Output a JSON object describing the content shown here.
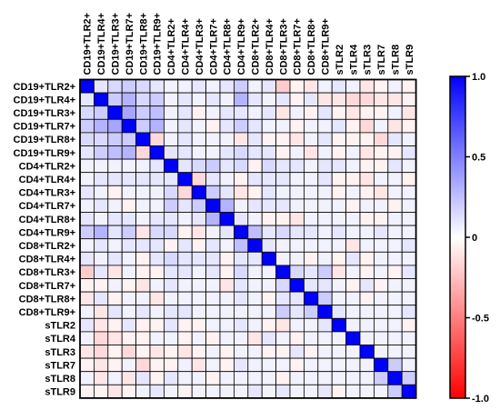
{
  "chart_data": {
    "type": "heatmap",
    "title": "",
    "xlabel": "",
    "ylabel": "",
    "rows": [
      "CD19+TLR2+",
      "CD19+TLR4+",
      "CD19+TLR3+",
      "CD19+TLR7+",
      "CD19+TLR8+",
      "CD19+TLR9+",
      "CD4+TLR2+",
      "CD4+TLR4+",
      "CD4+TLR3+",
      "CD4+TLR7+",
      "CD4+TLR8+",
      "CD4+TLR9+",
      "CD8+TLR2+",
      "CD8+TLR4+",
      "CD8+TLR3+",
      "CD8+TLR7+",
      "CD8+TLR8+",
      "CD8+TLR9+",
      "sTLR2",
      "sTLR4",
      "sTLR3",
      "sTLR7",
      "sTLR8",
      "sTLR9"
    ],
    "columns": [
      "CD19+TLR2+",
      "CD19+TLR4+",
      "CD19+TLR3+",
      "CD19+TLR7+",
      "CD19+TLR8+",
      "CD19+TLR9+",
      "CD4+TLR2+",
      "CD4+TLR4+",
      "CD4+TLR3+",
      "CD4+TLR7+",
      "CD4+TLR8+",
      "CD4+TLR9+",
      "CD8+TLR2+",
      "CD8+TLR4+",
      "CD8+TLR3+",
      "CD8+TLR7+",
      "CD8+TLR8+",
      "CD8+TLR9+",
      "sTLR2",
      "sTLR4",
      "sTLR3",
      "sTLR7",
      "sTLR8",
      "sTLR9"
    ],
    "values": [
      [
        1.0,
        0.1,
        0.15,
        0.2,
        0.15,
        0.1,
        0.05,
        0.05,
        0.1,
        0.05,
        0.1,
        0.2,
        0.05,
        0.1,
        -0.2,
        -0.05,
        -0.1,
        0.05,
        0.1,
        0.05,
        -0.1,
        -0.05,
        0.05,
        -0.05
      ],
      [
        0.1,
        1.0,
        0.2,
        0.3,
        0.15,
        0.2,
        0.05,
        0.1,
        0.05,
        0.1,
        0.05,
        0.3,
        0.1,
        0.05,
        0.1,
        -0.05,
        0.1,
        -0.1,
        -0.1,
        -0.15,
        -0.15,
        -0.1,
        -0.1,
        -0.05
      ],
      [
        0.15,
        0.2,
        1.0,
        0.35,
        0.2,
        0.25,
        0.05,
        0.1,
        -0.05,
        0.05,
        0.1,
        0.1,
        0.05,
        0.1,
        -0.1,
        0.05,
        -0.05,
        0.1,
        -0.05,
        -0.1,
        -0.05,
        -0.05,
        0.05,
        -0.1
      ],
      [
        0.2,
        0.3,
        0.35,
        1.0,
        0.2,
        0.3,
        0.05,
        0.1,
        0.05,
        -0.05,
        0.1,
        0.2,
        0.1,
        0.05,
        0.05,
        -0.05,
        0.05,
        0.05,
        0.1,
        -0.05,
        -0.15,
        0.05,
        -0.1,
        -0.05
      ],
      [
        0.15,
        0.15,
        0.2,
        0.2,
        1.0,
        -0.15,
        0.05,
        0.1,
        0.05,
        0.05,
        0.05,
        -0.1,
        0.1,
        -0.05,
        -0.05,
        -0.1,
        0.05,
        0.1,
        -0.05,
        -0.05,
        -0.05,
        -0.15,
        0.1,
        0.05
      ],
      [
        0.1,
        0.2,
        0.25,
        0.3,
        -0.15,
        1.0,
        0.1,
        0.1,
        0.05,
        0.05,
        0.1,
        0.15,
        0.1,
        0.1,
        -0.05,
        0.05,
        -0.1,
        0.05,
        -0.05,
        0.05,
        -0.1,
        -0.05,
        -0.05,
        0.1
      ],
      [
        0.05,
        0.05,
        0.05,
        0.05,
        0.05,
        0.1,
        1.0,
        0.1,
        0.15,
        0.2,
        0.1,
        0.15,
        -0.05,
        0.15,
        0.1,
        0.1,
        0.05,
        0.1,
        0.1,
        0.05,
        -0.05,
        -0.05,
        0.1,
        0.05
      ],
      [
        0.05,
        0.1,
        0.1,
        0.1,
        0.1,
        0.1,
        0.1,
        1.0,
        -0.15,
        0.1,
        0.05,
        -0.05,
        0.1,
        0.1,
        0.1,
        0.05,
        0.05,
        0.1,
        -0.05,
        -0.05,
        -0.1,
        0.05,
        0.05,
        -0.05
      ],
      [
        0.1,
        0.05,
        -0.05,
        0.05,
        0.05,
        0.05,
        0.15,
        -0.15,
        1.0,
        0.2,
        0.1,
        -0.1,
        -0.05,
        0.1,
        0.05,
        0.05,
        0.05,
        0.05,
        -0.05,
        0.05,
        -0.05,
        -0.1,
        0.05,
        0.05
      ],
      [
        0.05,
        0.1,
        0.05,
        -0.05,
        0.05,
        0.05,
        0.2,
        0.1,
        0.2,
        1.0,
        0.3,
        0.05,
        0.1,
        0.1,
        0.1,
        0.05,
        0.05,
        0.05,
        0.05,
        -0.05,
        0.05,
        0.05,
        -0.05,
        0.05
      ],
      [
        0.1,
        0.05,
        0.1,
        0.1,
        0.05,
        0.1,
        0.1,
        0.05,
        0.1,
        0.3,
        1.0,
        0.1,
        0.05,
        -0.05,
        -0.05,
        -0.1,
        0.05,
        0.05,
        0.05,
        0.05,
        -0.05,
        -0.05,
        0.05,
        0.05
      ],
      [
        0.2,
        0.3,
        0.1,
        0.2,
        -0.1,
        0.15,
        0.15,
        -0.05,
        -0.1,
        0.05,
        0.1,
        1.0,
        0.25,
        0.1,
        0.15,
        0.1,
        0.1,
        0.05,
        0.1,
        0.05,
        0.05,
        0.1,
        0.05,
        0.05
      ],
      [
        0.05,
        0.1,
        0.05,
        0.1,
        0.1,
        0.1,
        -0.05,
        0.1,
        -0.05,
        0.1,
        0.05,
        0.25,
        1.0,
        0.1,
        0.05,
        0.05,
        0.05,
        0.05,
        0.05,
        -0.1,
        0.05,
        0.05,
        0.05,
        0.1
      ],
      [
        0.1,
        0.05,
        0.1,
        0.05,
        -0.05,
        0.1,
        0.15,
        0.1,
        0.1,
        0.1,
        -0.05,
        0.1,
        0.1,
        1.0,
        0.05,
        0.05,
        -0.05,
        0.05,
        -0.05,
        0.1,
        -0.05,
        0.05,
        0.05,
        0.05
      ],
      [
        -0.2,
        0.1,
        -0.1,
        0.05,
        -0.05,
        -0.05,
        0.1,
        0.1,
        0.05,
        0.1,
        -0.05,
        0.15,
        0.05,
        0.05,
        1.0,
        0.15,
        0.1,
        0.2,
        -0.1,
        0.05,
        -0.05,
        0.05,
        -0.05,
        0.1
      ],
      [
        -0.05,
        -0.05,
        0.05,
        -0.05,
        -0.1,
        0.05,
        0.1,
        0.05,
        0.05,
        0.05,
        -0.1,
        0.1,
        0.05,
        0.05,
        0.15,
        1.0,
        0.1,
        0.1,
        0.05,
        -0.05,
        0.1,
        -0.05,
        0.05,
        0.05
      ],
      [
        -0.1,
        0.1,
        -0.05,
        0.05,
        0.05,
        -0.1,
        0.05,
        0.05,
        0.05,
        0.05,
        0.05,
        0.1,
        0.05,
        -0.05,
        0.1,
        0.1,
        1.0,
        0.2,
        0.05,
        0.05,
        -0.05,
        0.05,
        0.05,
        0.05
      ],
      [
        0.05,
        -0.1,
        0.1,
        0.05,
        0.1,
        0.05,
        0.1,
        0.1,
        0.05,
        0.05,
        0.05,
        0.05,
        0.05,
        0.05,
        0.2,
        0.1,
        0.2,
        1.0,
        0.1,
        0.05,
        0.05,
        0.05,
        0.05,
        0.1
      ],
      [
        0.1,
        -0.1,
        -0.05,
        0.1,
        -0.05,
        -0.05,
        0.1,
        -0.05,
        -0.05,
        0.05,
        0.05,
        0.1,
        0.05,
        -0.05,
        -0.1,
        0.05,
        0.05,
        0.1,
        1.0,
        0.05,
        0.05,
        0.05,
        0.05,
        -0.05
      ],
      [
        0.05,
        -0.15,
        -0.1,
        -0.05,
        -0.05,
        0.05,
        0.05,
        -0.05,
        0.05,
        -0.05,
        0.05,
        0.05,
        -0.1,
        0.1,
        0.05,
        -0.05,
        0.05,
        0.05,
        0.05,
        1.0,
        0.05,
        0.05,
        0.05,
        0.05
      ],
      [
        -0.1,
        -0.15,
        -0.05,
        -0.15,
        -0.05,
        -0.1,
        -0.05,
        -0.1,
        -0.05,
        0.05,
        -0.05,
        0.05,
        0.05,
        -0.05,
        -0.05,
        0.1,
        -0.05,
        0.05,
        0.05,
        0.05,
        1.0,
        0.05,
        0.05,
        0.05
      ],
      [
        -0.05,
        -0.1,
        -0.05,
        0.05,
        -0.15,
        -0.05,
        -0.05,
        0.05,
        -0.1,
        0.05,
        -0.05,
        0.1,
        0.05,
        0.05,
        0.05,
        -0.05,
        0.05,
        0.05,
        0.05,
        0.05,
        0.05,
        1.0,
        0.2,
        0.05
      ],
      [
        0.05,
        -0.1,
        0.05,
        -0.1,
        0.1,
        -0.05,
        0.1,
        0.05,
        0.05,
        -0.05,
        0.05,
        0.05,
        0.05,
        0.05,
        -0.05,
        0.05,
        0.05,
        0.05,
        0.05,
        0.05,
        0.05,
        0.2,
        1.0,
        0.2
      ],
      [
        -0.05,
        -0.05,
        -0.1,
        -0.05,
        0.05,
        0.1,
        0.05,
        -0.05,
        0.05,
        0.05,
        0.05,
        0.05,
        0.1,
        0.05,
        0.1,
        0.05,
        0.05,
        0.1,
        -0.05,
        0.05,
        0.05,
        0.05,
        0.2,
        1.0
      ]
    ],
    "value_range": [
      -1.0,
      1.0
    ],
    "colorbar": {
      "ticks": [
        1.0,
        0.5,
        0,
        -0.5,
        -1.0
      ],
      "tick_labels": [
        "1.0",
        "0.5",
        "0",
        "-0.5",
        "-1.0"
      ],
      "colors": {
        "high": "#0000ff",
        "mid": "#ffffff",
        "low": "#ff0000"
      }
    },
    "grid": true
  }
}
